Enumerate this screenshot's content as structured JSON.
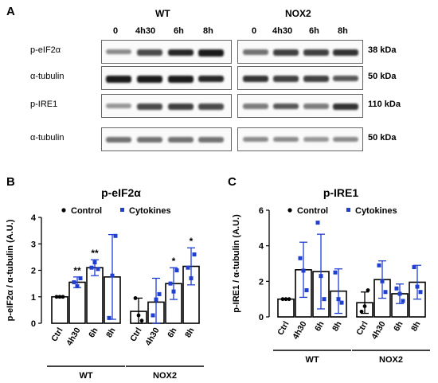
{
  "figure": {
    "panel_a": {
      "letter": "A",
      "groups": [
        "WT",
        "NOX2"
      ],
      "timepoints": [
        "0",
        "4h30",
        "6h",
        "8h"
      ],
      "blots": [
        {
          "label": "p-eIF2α",
          "kda": "38 kDa",
          "wt": [
            0.45,
            0.7,
            0.85,
            0.9
          ],
          "nox2": [
            0.55,
            0.75,
            0.75,
            0.8
          ]
        },
        {
          "label": "α-tubulin",
          "kda": "50 kDa",
          "wt": [
            0.9,
            0.9,
            0.9,
            0.85
          ],
          "nox2": [
            0.8,
            0.75,
            0.75,
            0.65
          ]
        },
        {
          "label": "p-IRE1",
          "kda": "110 kDa",
          "wt": [
            0.4,
            0.7,
            0.75,
            0.7
          ],
          "nox2": [
            0.5,
            0.65,
            0.5,
            0.8
          ]
        },
        {
          "label": "α-tubulin",
          "kda": "50 kDa",
          "wt": [
            0.55,
            0.55,
            0.55,
            0.55
          ],
          "nox2": [
            0.45,
            0.45,
            0.4,
            0.45
          ]
        }
      ]
    }
  },
  "chart_data": [
    {
      "panel": "B",
      "type": "bar",
      "title": "p-eIF2α",
      "ylabel": "p-eIF2α / α-tubulin (A.U.)",
      "ylim": [
        0,
        4
      ],
      "yticks": [
        "0",
        "1",
        "2",
        "3",
        "4"
      ],
      "categories": [
        "Ctrl",
        "4h30",
        "6h",
        "8h",
        "Ctrl",
        "4h30",
        "6h",
        "8h"
      ],
      "groups": [
        {
          "name": "WT",
          "start": 0,
          "end": 3
        },
        {
          "name": "NOX2",
          "start": 4,
          "end": 7
        }
      ],
      "legend": {
        "control": "Control",
        "cytokines": "Cytokines"
      },
      "values": [
        1.0,
        1.55,
        2.1,
        1.75,
        0.45,
        0.8,
        1.5,
        2.15
      ],
      "errors": [
        0.03,
        0.2,
        0.3,
        1.6,
        0.5,
        0.9,
        0.6,
        0.7
      ],
      "points": [
        [
          1.0,
          1.0,
          1.0
        ],
        [
          1.55,
          1.7,
          1.4
        ],
        [
          2.1,
          2.05,
          2.3
        ],
        [
          0.2,
          3.3,
          1.8
        ],
        [
          0.95,
          0.1,
          0.3
        ],
        [
          0.3,
          1.1,
          0.9
        ],
        [
          1.5,
          2.0,
          1.2
        ],
        [
          2.1,
          2.6,
          1.7
        ]
      ],
      "annotations": [
        "",
        "**",
        "**",
        "",
        "",
        "",
        "*",
        "*"
      ]
    },
    {
      "panel": "C",
      "type": "bar",
      "title": "p-IRE1",
      "ylabel": "p-IRE1 / α-tubulin (A.U.)",
      "ylim": [
        0,
        6
      ],
      "yticks": [
        "0",
        "2",
        "4",
        "6"
      ],
      "categories": [
        "Ctrl",
        "4h30",
        "6h",
        "8h",
        "Ctrl",
        "4h30",
        "6h",
        "8h"
      ],
      "groups": [
        {
          "name": "WT",
          "start": 0,
          "end": 3
        },
        {
          "name": "NOX2",
          "start": 4,
          "end": 7
        }
      ],
      "legend": {
        "control": "Control",
        "cytokines": "Cytokines"
      },
      "values": [
        1.0,
        2.65,
        2.55,
        1.45,
        0.8,
        2.1,
        1.3,
        1.95
      ],
      "errors": [
        0.03,
        1.55,
        2.1,
        1.25,
        0.6,
        1.05,
        0.55,
        0.95
      ],
      "points": [
        [
          1.0,
          1.0,
          1.0
        ],
        [
          3.3,
          1.5,
          2.6
        ],
        [
          5.3,
          1.0,
          2.3
        ],
        [
          2.5,
          0.8,
          1.0
        ],
        [
          0.3,
          1.5,
          0.6
        ],
        [
          2.9,
          1.4,
          2.0
        ],
        [
          1.6,
          0.9,
          1.3
        ],
        [
          2.8,
          1.4,
          1.7
        ]
      ],
      "annotations": [
        "",
        "",
        "",
        "",
        "",
        "",
        "",
        ""
      ]
    }
  ]
}
